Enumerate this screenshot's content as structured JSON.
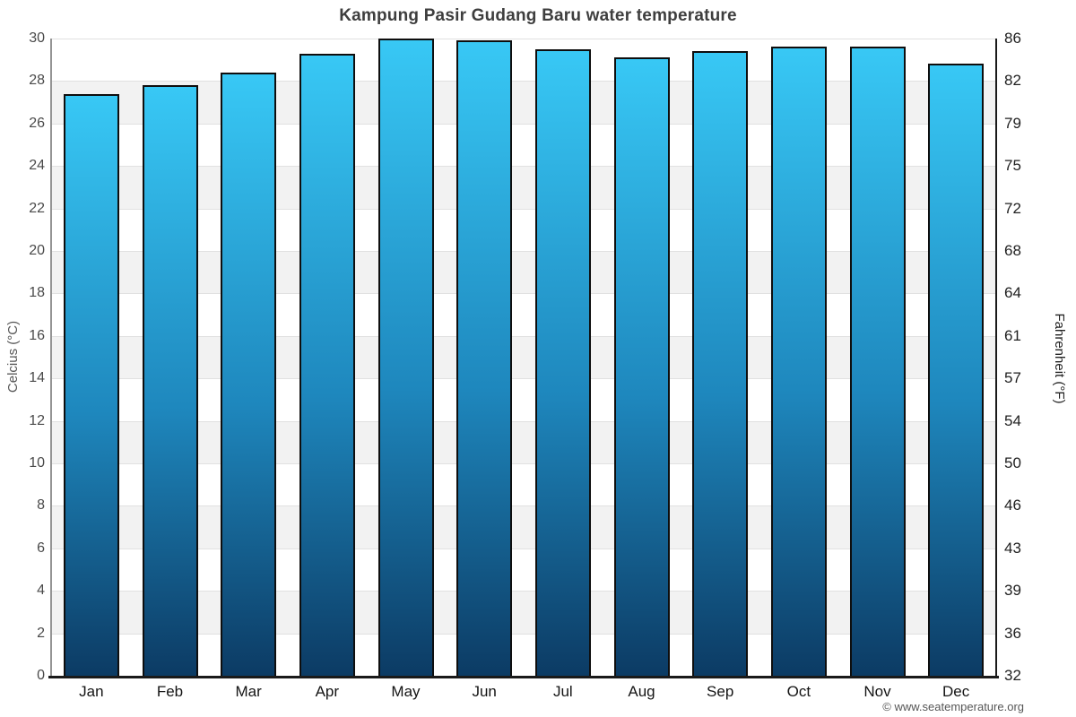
{
  "title": "Kampung Pasir Gudang Baru water temperature",
  "watermark": "© www.seatemperature.org",
  "axes": {
    "left_title": "Celcius (°C)",
    "right_title": "Fahrenheit (°F)",
    "celsius_ticks": [
      0,
      2,
      4,
      6,
      8,
      10,
      12,
      14,
      16,
      18,
      20,
      22,
      24,
      26,
      28,
      30
    ],
    "fahrenheit_ticks": [
      32,
      36,
      39,
      43,
      46,
      50,
      54,
      57,
      61,
      64,
      68,
      72,
      75,
      79,
      82,
      86
    ]
  },
  "chart_data": {
    "type": "bar",
    "title": "Kampung Pasir Gudang Baru water temperature",
    "categories": [
      "Jan",
      "Feb",
      "Mar",
      "Apr",
      "May",
      "Jun",
      "Jul",
      "Aug",
      "Sep",
      "Oct",
      "Nov",
      "Dec"
    ],
    "values": [
      27.4,
      27.8,
      28.4,
      29.3,
      30.0,
      29.9,
      29.5,
      29.1,
      29.4,
      29.6,
      29.6,
      28.8
    ],
    "unit": "°C",
    "xlabel": "",
    "ylabel": "Celcius (°C)",
    "y2label": "Fahrenheit (°F)",
    "ylim": [
      0,
      30
    ],
    "y2lim": [
      32,
      86
    ],
    "grid": "horizontal-bands-alternating",
    "legend": "none",
    "colors": {
      "bar_top": "#38c8f5",
      "bar_mid": "#1e87bd",
      "bar_bottom": "#0c3b64",
      "bar_border": "#0e0e0e",
      "band_gray": "#f2f2f2",
      "gridline": "#e1e1e1",
      "axis_dark": "#1a1a1a",
      "axis_left_line": "#949494",
      "title_text": "#3e3e3e"
    }
  }
}
